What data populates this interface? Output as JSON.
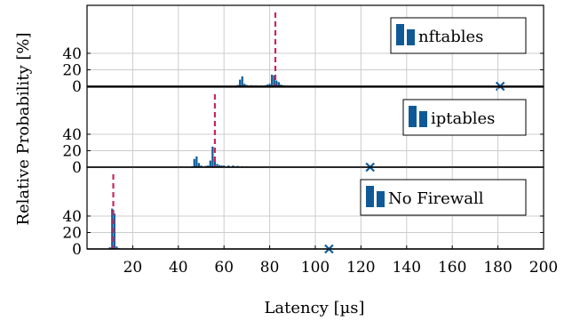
{
  "chart_data": {
    "type": "bar",
    "xlabel": "Latency [µs]",
    "ylabel": "Relative Probability [%]",
    "xlim": [
      0,
      200
    ],
    "ylim": [
      0,
      50
    ],
    "xticks": [
      20,
      40,
      60,
      80,
      100,
      120,
      140,
      160,
      180,
      200
    ],
    "yticks": [
      0,
      20,
      40
    ],
    "grid": true,
    "bar_color": "#0f5a96",
    "median_color": "#c8285a",
    "max_marker_color": "#0f5a96",
    "panels": [
      {
        "legend": "nftables",
        "legend_position": "top-right",
        "median": 82.5,
        "max": 181,
        "bars": [
          {
            "x": 62,
            "y": 0.3
          },
          {
            "x": 64,
            "y": 0.5
          },
          {
            "x": 66,
            "y": 1.5
          },
          {
            "x": 67,
            "y": 8
          },
          {
            "x": 68,
            "y": 12
          },
          {
            "x": 69,
            "y": 3
          },
          {
            "x": 70,
            "y": 1.5
          },
          {
            "x": 72,
            "y": 1.2
          },
          {
            "x": 74,
            "y": 1.0
          },
          {
            "x": 76,
            "y": 0.8
          },
          {
            "x": 78,
            "y": 1.0
          },
          {
            "x": 79,
            "y": 2
          },
          {
            "x": 80,
            "y": 3
          },
          {
            "x": 81,
            "y": 14
          },
          {
            "x": 82,
            "y": 13
          },
          {
            "x": 83,
            "y": 7
          },
          {
            "x": 84,
            "y": 5
          },
          {
            "x": 85,
            "y": 2
          },
          {
            "x": 86,
            "y": 1.2
          },
          {
            "x": 88,
            "y": 0.8
          },
          {
            "x": 90,
            "y": 0.6
          },
          {
            "x": 95,
            "y": 0.5
          },
          {
            "x": 100,
            "y": 0.4
          },
          {
            "x": 110,
            "y": 0.3
          },
          {
            "x": 120,
            "y": 0.2
          },
          {
            "x": 130,
            "y": 0.15
          },
          {
            "x": 140,
            "y": 0.1
          },
          {
            "x": 150,
            "y": 0.1
          },
          {
            "x": 160,
            "y": 0.08
          },
          {
            "x": 170,
            "y": 0.05
          }
        ]
      },
      {
        "legend": "iptables",
        "legend_position": "top-right",
        "median": 56,
        "max": 124,
        "bars": [
          {
            "x": 44,
            "y": 0.5
          },
          {
            "x": 46,
            "y": 1
          },
          {
            "x": 47,
            "y": 10
          },
          {
            "x": 48,
            "y": 13
          },
          {
            "x": 49,
            "y": 5
          },
          {
            "x": 50,
            "y": 2
          },
          {
            "x": 52,
            "y": 1.5
          },
          {
            "x": 53,
            "y": 2
          },
          {
            "x": 54,
            "y": 8
          },
          {
            "x": 55,
            "y": 25
          },
          {
            "x": 56,
            "y": 10
          },
          {
            "x": 57,
            "y": 4
          },
          {
            "x": 58,
            "y": 2.5
          },
          {
            "x": 59,
            "y": 2
          },
          {
            "x": 60,
            "y": 2
          },
          {
            "x": 62,
            "y": 2
          },
          {
            "x": 64,
            "y": 2
          },
          {
            "x": 66,
            "y": 1.5
          },
          {
            "x": 68,
            "y": 1
          },
          {
            "x": 70,
            "y": 0.8
          },
          {
            "x": 75,
            "y": 0.6
          },
          {
            "x": 80,
            "y": 0.5
          },
          {
            "x": 85,
            "y": 0.4
          },
          {
            "x": 90,
            "y": 0.3
          },
          {
            "x": 100,
            "y": 0.2
          },
          {
            "x": 110,
            "y": 0.1
          }
        ]
      },
      {
        "legend": "No Firewall",
        "legend_position": "top-right",
        "median": 11.5,
        "max": 106,
        "bars": [
          {
            "x": 10,
            "y": 2
          },
          {
            "x": 11,
            "y": 49
          },
          {
            "x": 12,
            "y": 43
          },
          {
            "x": 13,
            "y": 3
          },
          {
            "x": 14,
            "y": 1
          },
          {
            "x": 16,
            "y": 0.5
          },
          {
            "x": 20,
            "y": 0.3
          },
          {
            "x": 25,
            "y": 0.2
          },
          {
            "x": 30,
            "y": 0.3
          },
          {
            "x": 35,
            "y": 0.2
          },
          {
            "x": 40,
            "y": 0.15
          },
          {
            "x": 50,
            "y": 0.1
          },
          {
            "x": 60,
            "y": 0.1
          },
          {
            "x": 70,
            "y": 0.08
          },
          {
            "x": 80,
            "y": 0.05
          },
          {
            "x": 90,
            "y": 0.05
          }
        ]
      }
    ]
  }
}
